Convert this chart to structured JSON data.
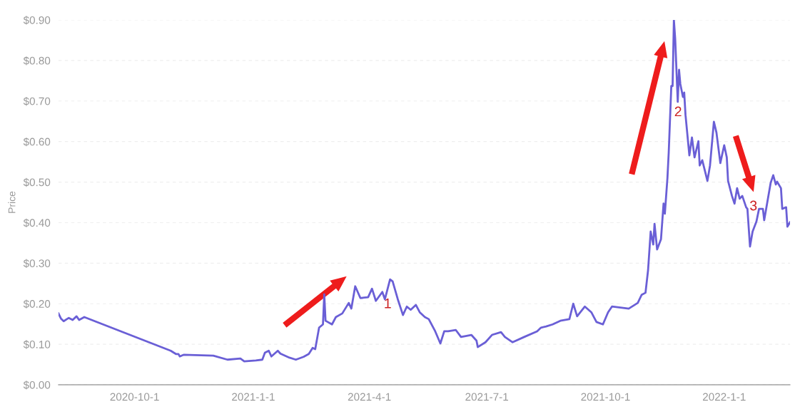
{
  "chart_data": {
    "type": "line",
    "ylabel": "Price",
    "x": [
      "2020-08-03",
      "2020-08-05",
      "2020-08-07",
      "2020-08-11",
      "2020-08-14",
      "2020-08-17",
      "2020-08-19",
      "2020-08-23",
      "2020-10-29",
      "2020-11-02",
      "2020-11-04",
      "2020-11-05",
      "2020-11-08",
      "2020-12-01",
      "2020-12-12",
      "2020-12-22",
      "2020-12-25",
      "2021-01-03",
      "2021-01-08",
      "2021-01-10",
      "2021-01-13",
      "2021-01-15",
      "2021-01-20",
      "2021-01-22",
      "2021-01-29",
      "2021-02-03",
      "2021-02-09",
      "2021-02-13",
      "2021-02-16",
      "2021-02-18",
      "2021-02-21",
      "2021-02-24",
      "2021-02-25",
      "2021-02-26",
      "2021-03-03",
      "2021-03-06",
      "2021-03-11",
      "2021-03-16",
      "2021-03-18",
      "2021-03-21",
      "2021-03-25",
      "2021-03-31",
      "2021-04-03",
      "2021-04-06",
      "2021-04-11",
      "2021-04-13",
      "2021-04-17",
      "2021-04-19",
      "2021-04-23",
      "2021-04-27",
      "2021-04-30",
      "2021-05-03",
      "2021-05-07",
      "2021-05-10",
      "2021-05-14",
      "2021-05-17",
      "2021-05-22",
      "2021-05-26",
      "2021-05-29",
      "2021-06-01",
      "2021-06-07",
      "2021-06-11",
      "2021-06-19",
      "2021-06-23",
      "2021-06-24",
      "2021-06-30",
      "2021-07-05",
      "2021-07-12",
      "2021-07-15",
      "2021-07-21",
      "2021-07-30",
      "2021-08-09",
      "2021-08-12",
      "2021-08-16",
      "2021-08-21",
      "2021-08-27",
      "2021-09-03",
      "2021-09-06",
      "2021-09-09",
      "2021-09-15",
      "2021-09-20",
      "2021-09-24",
      "2021-09-29",
      "2021-10-03",
      "2021-10-06",
      "2021-10-19",
      "2021-10-26",
      "2021-10-29",
      "2021-11-01",
      "2021-11-03",
      "2021-11-05",
      "2021-11-07",
      "2021-11-08",
      "2021-11-10",
      "2021-11-13",
      "2021-11-15",
      "2021-11-16",
      "2021-11-18",
      "2021-11-19",
      "2021-11-21",
      "2021-11-22",
      "2021-11-23",
      "2021-11-24",
      "2021-11-26",
      "2021-11-27",
      "2021-11-28",
      "2021-11-30",
      "2021-12-01",
      "2021-12-02",
      "2021-12-05",
      "2021-12-07",
      "2021-12-09",
      "2021-12-12",
      "2021-12-13",
      "2021-12-15",
      "2021-12-19",
      "2021-12-21",
      "2021-12-24",
      "2021-12-26",
      "2021-12-29",
      "2022-01-01",
      "2022-01-03",
      "2022-01-04",
      "2022-01-07",
      "2022-01-09",
      "2022-01-11",
      "2022-01-13",
      "2022-01-15",
      "2022-01-18",
      "2022-01-19",
      "2022-01-21",
      "2022-01-23",
      "2022-01-26",
      "2022-01-28",
      "2022-01-31",
      "2022-02-01",
      "2022-02-06",
      "2022-02-08",
      "2022-02-10",
      "2022-02-11",
      "2022-02-14",
      "2022-02-15",
      "2022-02-18",
      "2022-02-19",
      "2022-02-21"
    ],
    "series": [
      {
        "color": "#6a5fd6",
        "values": [
          0.176,
          0.163,
          0.157,
          0.165,
          0.16,
          0.169,
          0.16,
          0.167,
          0.084,
          0.076,
          0.076,
          0.07,
          0.074,
          0.072,
          0.062,
          0.065,
          0.058,
          0.06,
          0.062,
          0.079,
          0.084,
          0.07,
          0.084,
          0.077,
          0.067,
          0.062,
          0.069,
          0.076,
          0.091,
          0.088,
          0.141,
          0.149,
          0.223,
          0.158,
          0.149,
          0.167,
          0.176,
          0.202,
          0.188,
          0.243,
          0.214,
          0.216,
          0.237,
          0.207,
          0.229,
          0.211,
          0.26,
          0.255,
          0.211,
          0.172,
          0.193,
          0.185,
          0.197,
          0.179,
          0.167,
          0.162,
          0.132,
          0.102,
          0.132,
          0.132,
          0.135,
          0.118,
          0.123,
          0.109,
          0.093,
          0.105,
          0.123,
          0.13,
          0.118,
          0.105,
          0.118,
          0.132,
          0.141,
          0.144,
          0.149,
          0.158,
          0.162,
          0.2,
          0.169,
          0.193,
          0.179,
          0.155,
          0.149,
          0.179,
          0.193,
          0.188,
          0.202,
          0.222,
          0.227,
          0.283,
          0.378,
          0.346,
          0.397,
          0.334,
          0.359,
          0.447,
          0.422,
          0.51,
          0.573,
          0.737,
          0.737,
          0.9,
          0.854,
          0.698,
          0.777,
          0.742,
          0.71,
          0.721,
          0.666,
          0.566,
          0.61,
          0.561,
          0.601,
          0.541,
          0.554,
          0.503,
          0.541,
          0.649,
          0.622,
          0.547,
          0.591,
          0.561,
          0.503,
          0.466,
          0.447,
          0.485,
          0.459,
          0.466,
          0.438,
          0.434,
          0.341,
          0.378,
          0.403,
          0.434,
          0.434,
          0.406,
          0.498,
          0.517,
          0.494,
          0.501,
          0.485,
          0.434,
          0.438,
          0.39,
          0.401
        ]
      }
    ],
    "xlim": [
      "2020-08-03",
      "2022-02-21"
    ],
    "xticks": [
      {
        "value": "2020-10-01",
        "label": "2020-10-1"
      },
      {
        "value": "2021-01-01",
        "label": "2021-1-1"
      },
      {
        "value": "2021-04-01",
        "label": "2021-4-1"
      },
      {
        "value": "2021-07-01",
        "label": "2021-7-1"
      },
      {
        "value": "2021-10-01",
        "label": "2021-10-1"
      },
      {
        "value": "2022-01-01",
        "label": "2022-1-1"
      }
    ],
    "ylim": [
      0,
      0.9
    ],
    "yticks": [
      {
        "value": 0,
        "label": "$0.00"
      },
      {
        "value": 0.1,
        "label": "$0.10"
      },
      {
        "value": 0.2,
        "label": "$0.20"
      },
      {
        "value": 0.3,
        "label": "$0.30"
      },
      {
        "value": 0.4,
        "label": "$0.40"
      },
      {
        "value": 0.5,
        "label": "$0.50"
      },
      {
        "value": 0.6,
        "label": "$0.60"
      },
      {
        "value": 0.7,
        "label": "$0.70"
      },
      {
        "value": 0.8,
        "label": "$0.80"
      },
      {
        "value": 0.9,
        "label": "$0.90"
      }
    ],
    "grid": "y",
    "annotations": [
      "1",
      "2",
      "3"
    ]
  }
}
